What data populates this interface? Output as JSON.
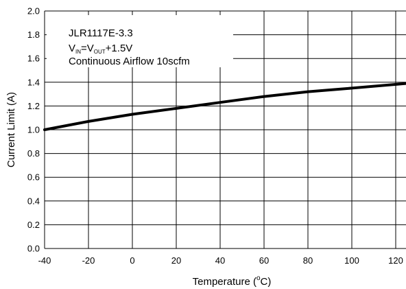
{
  "chart_data": {
    "type": "line",
    "xlabel": "Temperature (°C)",
    "xlabel_parts": {
      "prefix": "Temperature (",
      "superscript": "o",
      "unit": "C)"
    },
    "ylabel": "Current Limit (A)",
    "xlim": [
      -40,
      125
    ],
    "ylim": [
      0.0,
      2.0
    ],
    "x_ticks": [
      "-40",
      "-20",
      "0",
      "20",
      "40",
      "60",
      "80",
      "100",
      "120"
    ],
    "y_ticks": [
      "0.0",
      "0.2",
      "0.4",
      "0.6",
      "0.8",
      "1.0",
      "1.2",
      "1.4",
      "1.6",
      "1.8",
      "2.0"
    ],
    "grid": true,
    "annotation": {
      "line1": "JLR1117E-3.3",
      "line2": {
        "v1": "V",
        "sub1": "IN",
        "eq": "=V",
        "sub2": "OUT",
        "rest": "+1.5V"
      },
      "line3": "Continuous Airflow 10scfm"
    },
    "series": [
      {
        "x": [
          -40,
          -20,
          0,
          20,
          40,
          60,
          80,
          100,
          125
        ],
        "y": [
          1.0,
          1.07,
          1.13,
          1.18,
          1.23,
          1.28,
          1.32,
          1.35,
          1.39
        ]
      }
    ],
    "colors": {
      "line": "#000000",
      "grid": "#000000",
      "background": "#ffffff"
    }
  }
}
